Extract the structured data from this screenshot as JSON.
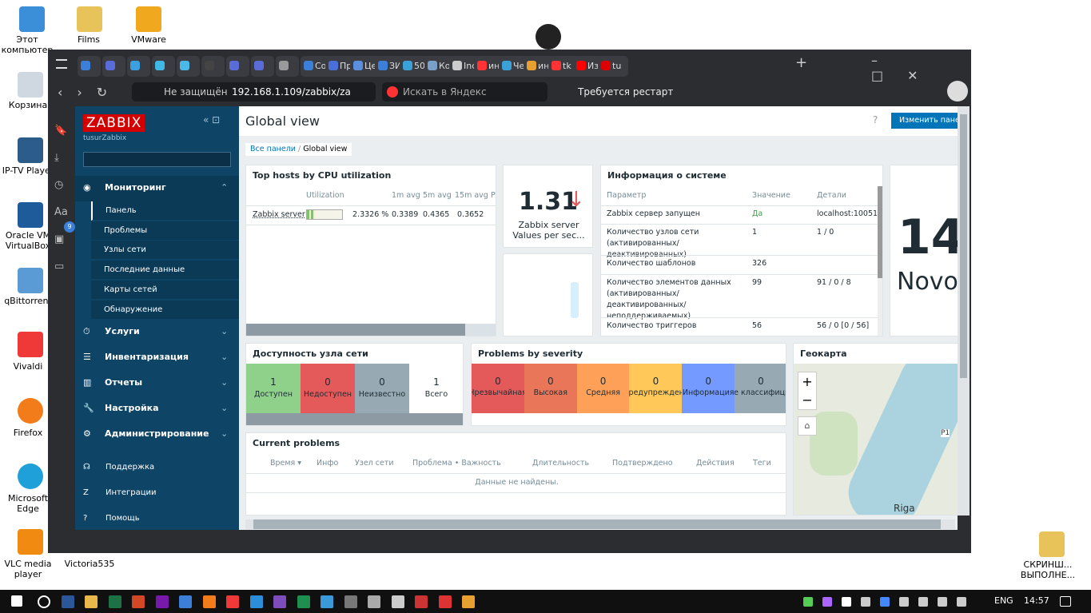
{
  "desktop": {
    "icons": [
      "Этот компьютер",
      "Films",
      "VMware",
      "Корзина",
      "IP-TV Player",
      "Oracle VM VirtualBox",
      "qBittorrent",
      "Vivaldi",
      "Firefox",
      "Microsoft Edge",
      "VLC media player",
      "Victoria535",
      "СКРИНШ... ВЫПОЛНЕ..."
    ]
  },
  "browser": {
    "tabs": [
      "Co",
      "Пр",
      "Це",
      "ЗИ",
      "50",
      "Ко",
      "Inc",
      "ин",
      "Че",
      "ин",
      "tk",
      "Из",
      "tu"
    ],
    "security": "Не защищён",
    "url": "192.168.1.109/zabbix/za",
    "search": "Искать в Яндекс",
    "restart": "Требуется рестарт"
  },
  "sidebar": {
    "logo": "ZABBIX",
    "user": "tusurZabbix",
    "badge": "9",
    "menu": [
      {
        "label": "Мониторинг",
        "items": [
          "Панель",
          "Проблемы",
          "Узлы сети",
          "Последние данные",
          "Карты сетей",
          "Обнаружение"
        ]
      },
      {
        "label": "Услуги"
      },
      {
        "label": "Инвентаризация"
      },
      {
        "label": "Отчеты"
      },
      {
        "label": "Настройка"
      },
      {
        "label": "Администрирование"
      }
    ],
    "footer": [
      "Поддержка",
      "Интеграции",
      "Помощь"
    ]
  },
  "dashboard": {
    "title": "Global view",
    "help": "?",
    "edit": "Изменить панель",
    "breadcrumbs": [
      "Все панели",
      "Global view"
    ],
    "top_hosts": {
      "title": "Top hosts by CPU utilization",
      "columns": [
        "Utilization",
        "1m avg",
        "5m avg",
        "15m avg",
        "P"
      ],
      "row": {
        "host": "Zabbix server",
        "utilization": 2.3326,
        "utilization_label": "2.3326 %",
        "avg1": "0.3389",
        "avg5": "0.4365",
        "avg15": "0.3652"
      }
    },
    "item_value": {
      "value": "1.31",
      "label": "Zabbix server Values per sec..."
    },
    "system_info": {
      "title": "Информация о системе",
      "columns": [
        "Параметр",
        "Значение",
        "Детали"
      ],
      "rows": [
        [
          "Zabbix сервер запущен",
          "Да",
          "localhost:10051"
        ],
        [
          "Количество узлов сети (активированных/деактивированных)",
          "1",
          "1 / 0"
        ],
        [
          "Количество шаблонов",
          "326"
        ],
        [
          "Количество элементов данных (активированных/деактивированных/неподдерживаемых)",
          "99",
          "91 / 0 / 8"
        ],
        [
          "Количество триггеров",
          "56",
          "56 / 0 [0 / 56]"
        ]
      ]
    },
    "clock": {
      "time": "14",
      "zone": "Novos"
    },
    "host_availability": {
      "title": "Доступность узла сети",
      "cells": [
        {
          "count": "1",
          "label": "Доступен"
        },
        {
          "count": "0",
          "label": "Недоступен"
        },
        {
          "count": "0",
          "label": "Неизвестно"
        },
        {
          "count": "1",
          "label": "Всего"
        }
      ]
    },
    "severity": {
      "title": "Problems by severity",
      "cells": [
        {
          "count": "0",
          "label": "Чрезвычайная"
        },
        {
          "count": "0",
          "label": "Высокая"
        },
        {
          "count": "0",
          "label": "Средняя"
        },
        {
          "count": "0",
          "label": "Предупреждение"
        },
        {
          "count": "0",
          "label": "Информация"
        },
        {
          "count": "0",
          "label": "Не классифицирована"
        }
      ]
    },
    "geomap": {
      "title": "Геокарта",
      "zoom_in": "+",
      "zoom_out": "−",
      "labels": [
        "Riga",
        "P1"
      ]
    },
    "current_problems": {
      "title": "Current problems",
      "columns": [
        "Время ▾",
        "Инфо",
        "Узел сети",
        "Проблема • Важность",
        "Длительность",
        "Подтверждено",
        "Действия",
        "Теги"
      ],
      "empty": "Данные не найдены."
    }
  },
  "taskbar": {
    "lang": "ENG",
    "time": "14:57"
  }
}
